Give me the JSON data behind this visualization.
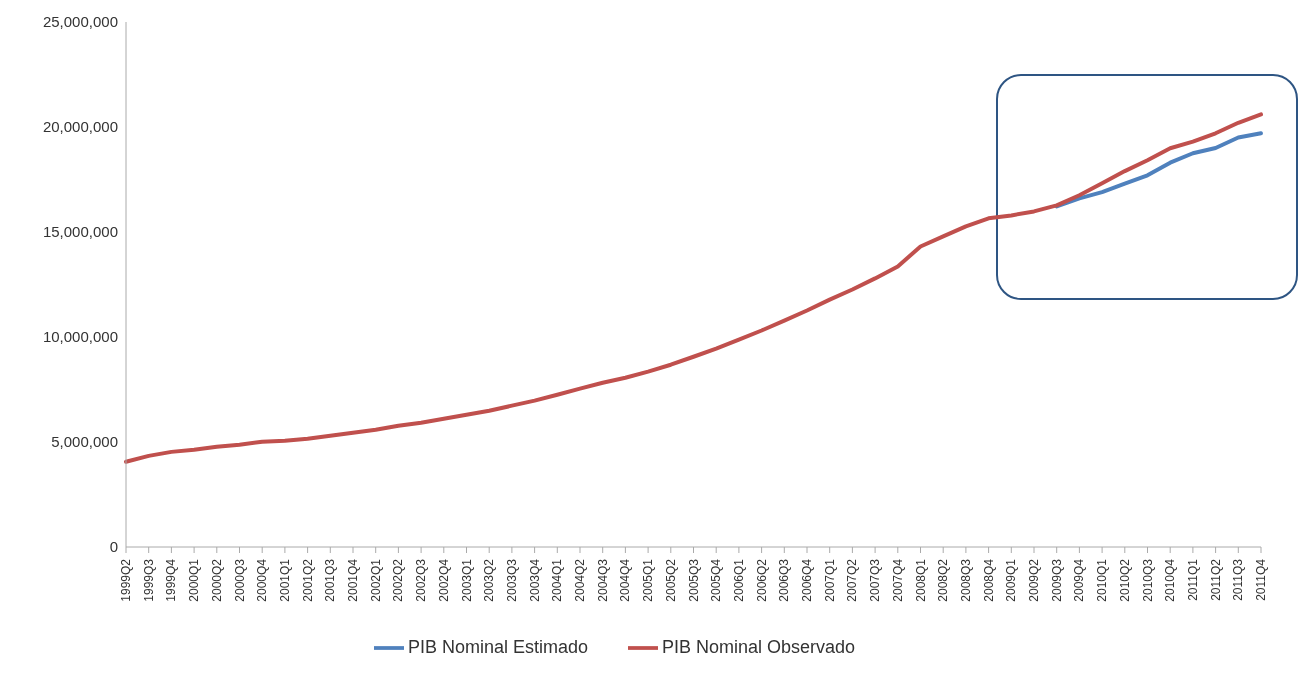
{
  "chart_data": {
    "type": "line",
    "categories": [
      "1999Q2",
      "1999Q3",
      "1999Q4",
      "2000Q1",
      "2000Q2",
      "2000Q3",
      "2000Q4",
      "2001Q1",
      "2001Q2",
      "2001Q3",
      "2001Q4",
      "2002Q1",
      "2002Q2",
      "2002Q3",
      "2002Q4",
      "2003Q1",
      "2003Q2",
      "2003Q3",
      "2003Q4",
      "2004Q1",
      "2004Q2",
      "2004Q3",
      "2004Q4",
      "2005Q1",
      "2005Q2",
      "2005Q3",
      "2005Q4",
      "2006Q1",
      "2006Q2",
      "2006Q3",
      "2006Q4",
      "2007Q1",
      "2007Q2",
      "2007Q3",
      "2007Q4",
      "2008Q1",
      "2008Q2",
      "2008Q3",
      "2008Q4",
      "2009Q1",
      "2009Q2",
      "2009Q3",
      "2009Q4",
      "2010Q1",
      "2010Q2",
      "2010Q3",
      "2010Q4",
      "2011Q1",
      "2011Q2",
      "2011Q3",
      "2011Q4"
    ],
    "series": [
      {
        "name": "PIB Nominal Estimado",
        "color": "#4f81bd",
        "values": [
          null,
          null,
          null,
          null,
          null,
          null,
          null,
          null,
          null,
          null,
          null,
          null,
          null,
          null,
          null,
          null,
          null,
          null,
          null,
          null,
          null,
          null,
          null,
          null,
          null,
          null,
          null,
          null,
          null,
          null,
          null,
          null,
          null,
          null,
          null,
          null,
          null,
          null,
          null,
          null,
          null,
          16220000,
          16600000,
          16900000,
          17300000,
          17700000,
          18300000,
          18750000,
          19000000,
          19500000,
          19700000
        ]
      },
      {
        "name": "PIB Nominal Observado",
        "color": "#c0504d",
        "values": [
          4060000,
          4340000,
          4530000,
          4630000,
          4770000,
          4870000,
          5010000,
          5060000,
          5150000,
          5300000,
          5440000,
          5580000,
          5770000,
          5920000,
          6110000,
          6300000,
          6490000,
          6730000,
          6970000,
          7250000,
          7540000,
          7820000,
          8060000,
          8350000,
          8680000,
          9060000,
          9450000,
          9880000,
          10310000,
          10780000,
          11260000,
          11780000,
          12260000,
          12790000,
          13360000,
          14310000,
          14790000,
          15270000,
          15650000,
          15790000,
          15980000,
          16270000,
          16750000,
          17320000,
          17900000,
          18420000,
          18990000,
          19300000,
          19700000,
          20200000,
          20600000
        ]
      }
    ],
    "ylim": [
      0,
      25000000
    ],
    "yticks": [
      0,
      {
        "value": 5000000,
        "label": "5,000,000"
      },
      {
        "value": 10000000,
        "label": "10,000,000"
      },
      {
        "value": 15000000,
        "label": "15,000,000"
      },
      {
        "value": 20000000,
        "label": "20,000,000"
      },
      {
        "value": 25000000,
        "label": "25,000,000"
      }
    ],
    "grid": false,
    "legend": "bottom",
    "marker": "none",
    "line_style": "solid"
  }
}
